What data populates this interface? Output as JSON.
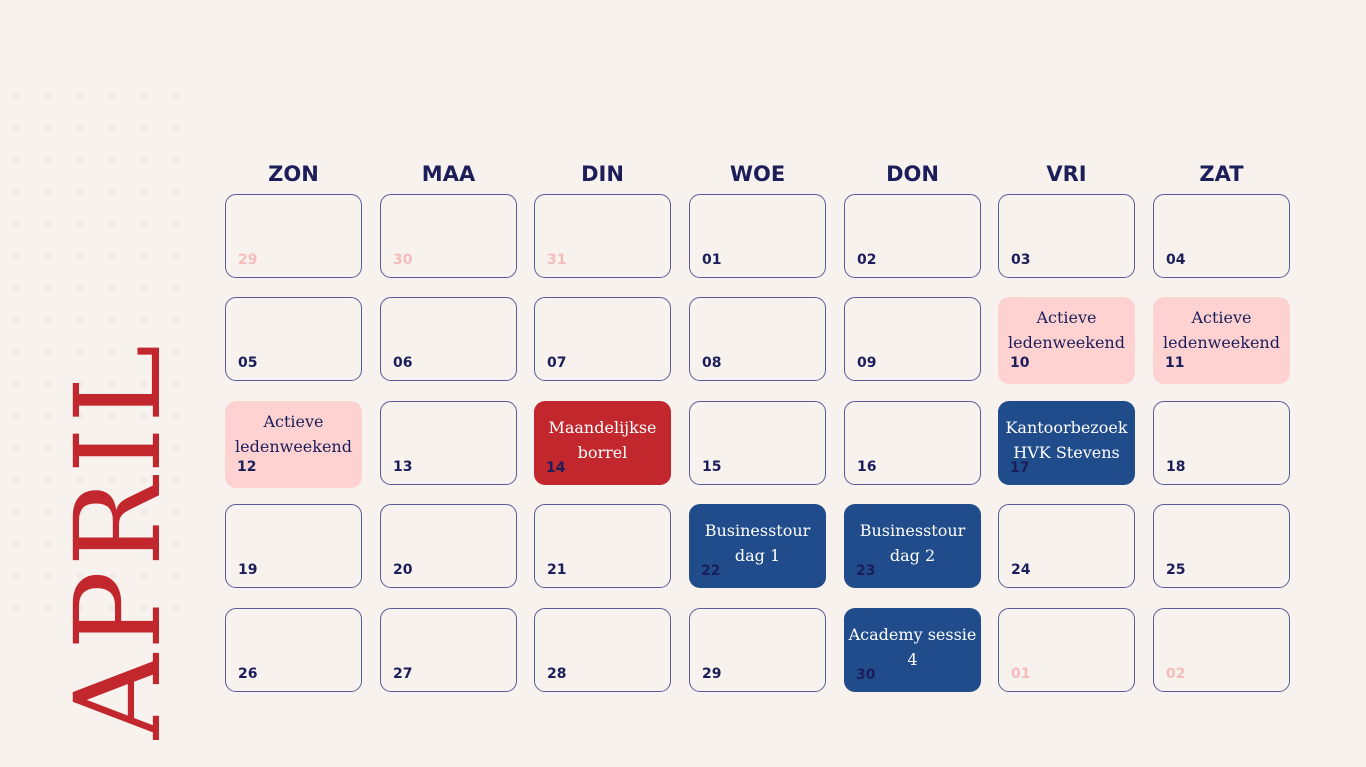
{
  "month": "APRIL",
  "weekdays": [
    "ZON",
    "MAA",
    "DIN",
    "WOE",
    "DON",
    "VRI",
    "ZAT"
  ],
  "weeks": [
    [
      {
        "day": "29",
        "muted": true
      },
      {
        "day": "30",
        "muted": true
      },
      {
        "day": "31",
        "muted": true
      },
      {
        "day": "01"
      },
      {
        "day": "02"
      },
      {
        "day": "03"
      },
      {
        "day": "04"
      }
    ],
    [
      {
        "day": "05"
      },
      {
        "day": "06"
      },
      {
        "day": "07"
      },
      {
        "day": "08"
      },
      {
        "day": "09"
      },
      {
        "day": "10",
        "event": "Actieve ledenweekend",
        "color": "pink"
      },
      {
        "day": "11",
        "event": "Actieve ledenweekend",
        "color": "pink"
      }
    ],
    [
      {
        "day": "12",
        "event": "Actieve ledenweekend",
        "color": "pink"
      },
      {
        "day": "13"
      },
      {
        "day": "14",
        "event": "Maandelijkse borrel",
        "color": "red"
      },
      {
        "day": "15"
      },
      {
        "day": "16"
      },
      {
        "day": "17",
        "event": "Kantoorbezoek HVK Stevens",
        "color": "blue"
      },
      {
        "day": "18"
      }
    ],
    [
      {
        "day": "19"
      },
      {
        "day": "20"
      },
      {
        "day": "21"
      },
      {
        "day": "22",
        "event": "Businesstour dag 1",
        "color": "blue"
      },
      {
        "day": "23",
        "event": "Businesstour dag 2",
        "color": "blue"
      },
      {
        "day": "24"
      },
      {
        "day": "25"
      }
    ],
    [
      {
        "day": "26"
      },
      {
        "day": "27"
      },
      {
        "day": "28"
      },
      {
        "day": "29"
      },
      {
        "day": "30",
        "event": "Academy sessie 4",
        "color": "blue"
      },
      {
        "day": "01",
        "muted": true
      },
      {
        "day": "02",
        "muted": true
      }
    ]
  ],
  "colors": {
    "accent_red": "#c1272d",
    "navy": "#1c1e5a",
    "event_blue": "#214c8c",
    "event_pink": "#fdd2d1",
    "muted_day": "#f6bcbc"
  }
}
